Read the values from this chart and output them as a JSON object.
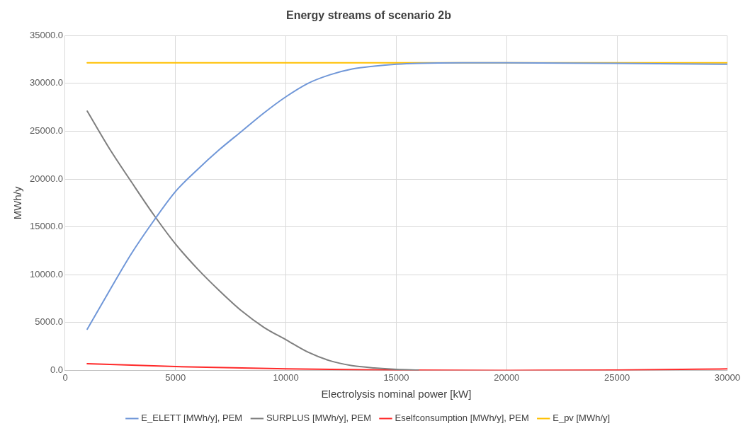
{
  "chart_data": {
    "type": "line",
    "title": "Energy streams of scenario 2b",
    "xlabel": "Electrolysis nominal power [kW]",
    "ylabel": "MWh/y",
    "xlim": [
      0,
      30000
    ],
    "xticks": [
      0,
      5000,
      10000,
      15000,
      20000,
      25000,
      30000
    ],
    "ylim": [
      0,
      35000
    ],
    "yticks": [
      {
        "value": 0,
        "label": "0.0"
      },
      {
        "value": 5000,
        "label": "5000.0"
      },
      {
        "value": 10000,
        "label": "10000.0"
      },
      {
        "value": 15000,
        "label": "15000.0"
      },
      {
        "value": 20000,
        "label": "20000.0"
      },
      {
        "value": 25000,
        "label": "25000.0"
      },
      {
        "value": 30000,
        "label": "30000.0"
      },
      {
        "value": 35000,
        "label": "35000.0"
      }
    ],
    "grid": true,
    "legend": "bottom",
    "marker": "none",
    "series": [
      {
        "name": "E_ELETT [MWh/y], PEM",
        "color": "#7097d8",
        "x": [
          1000,
          2000,
          3000,
          4000,
          5000,
          6000,
          7000,
          8000,
          9000,
          10000,
          11000,
          12000,
          13000,
          14000,
          15000,
          16000,
          18000,
          20000,
          25000,
          30000
        ],
        "values": [
          4300,
          8300,
          12200,
          15600,
          18700,
          21000,
          23100,
          25000,
          26900,
          28600,
          30000,
          30900,
          31500,
          31800,
          32000,
          32100,
          32150,
          32150,
          32100,
          32000
        ]
      },
      {
        "name": "SURPLUS [MWh/y], PEM",
        "color": "#7f7f7f",
        "x": [
          1000,
          2000,
          3000,
          4000,
          5000,
          6000,
          7000,
          8000,
          9000,
          10000,
          11000,
          12000,
          13000,
          14000,
          15000,
          16000
        ],
        "values": [
          27100,
          23200,
          19700,
          16300,
          13200,
          10600,
          8300,
          6200,
          4500,
          3200,
          1900,
          1000,
          500,
          250,
          100,
          30
        ]
      },
      {
        "name": "Eselfconsumption [MWh/y], PEM",
        "color": "#ff2a2a",
        "x": [
          1000,
          5000,
          10000,
          15000,
          20000,
          25000,
          30000
        ],
        "values": [
          700,
          400,
          150,
          30,
          0,
          30,
          150
        ]
      },
      {
        "name": "E_pv [MWh/y]",
        "color": "#ffc000",
        "x": [
          1000,
          30000
        ],
        "values": [
          32150,
          32150
        ]
      }
    ]
  }
}
